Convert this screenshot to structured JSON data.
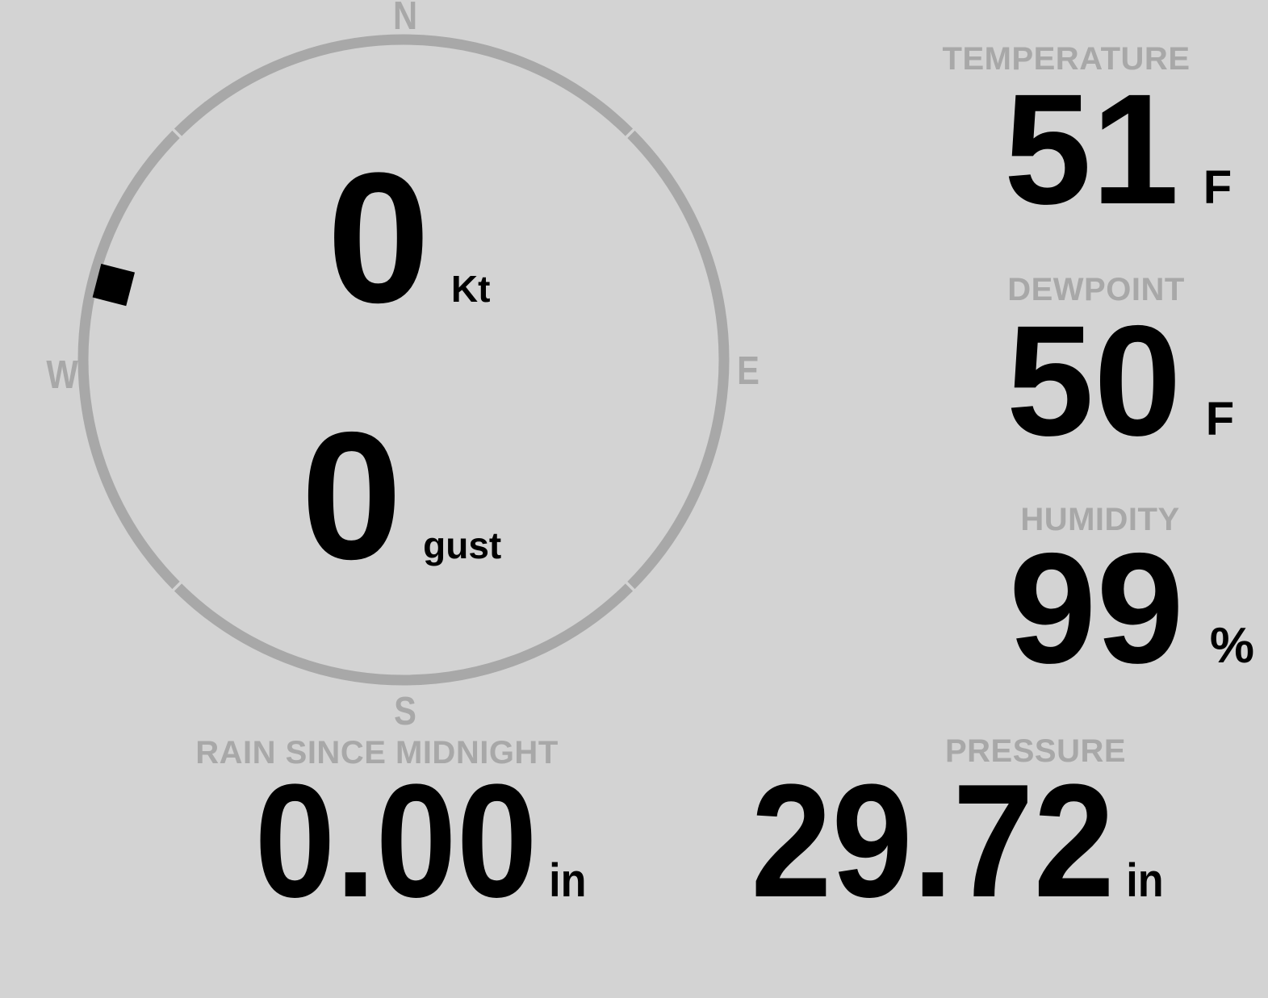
{
  "colors": {
    "background": "#d3d3d3",
    "muted": "#a8a8a8",
    "value": "#000000"
  },
  "wind": {
    "compass": {
      "north": "N",
      "south": "S",
      "east": "E",
      "west": "W"
    },
    "direction_deg": 284.5,
    "speed": {
      "value": "0",
      "unit": "Kt"
    },
    "gust": {
      "value": "0",
      "unit": "gust"
    }
  },
  "metrics": {
    "temperature": {
      "label": "TEMPERATURE",
      "value": "51",
      "unit": "F"
    },
    "dewpoint": {
      "label": "DEWPOINT",
      "value": "50",
      "unit": "F"
    },
    "humidity": {
      "label": "HUMIDITY",
      "value": "99",
      "unit": "%"
    },
    "rain": {
      "label": "RAIN SINCE MIDNIGHT",
      "value": "0.00",
      "unit": "in"
    },
    "pressure": {
      "label": "PRESSURE",
      "value": "29.72",
      "unit": "in"
    }
  }
}
